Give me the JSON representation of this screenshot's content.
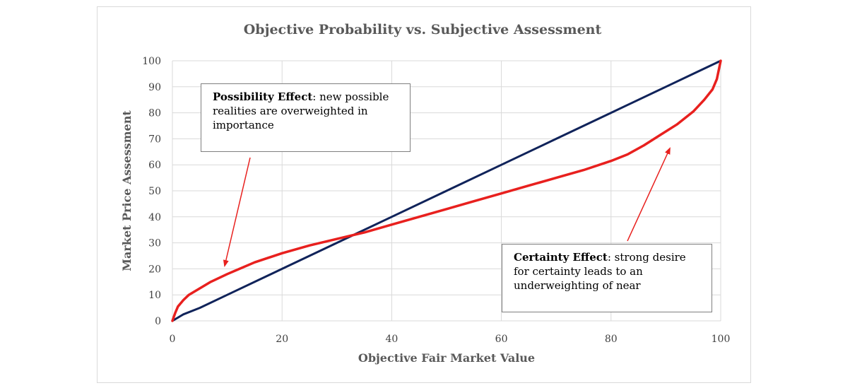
{
  "chart_data": {
    "type": "line",
    "title": "Objective Probability vs. Subjective Assessment",
    "xlabel": "Objective Fair Market Value",
    "ylabel": "Market Price Assessment",
    "xlim": [
      0,
      100
    ],
    "ylim": [
      0,
      100
    ],
    "xticks": [
      0,
      20,
      40,
      60,
      80,
      100
    ],
    "yticks": [
      0,
      10,
      20,
      30,
      40,
      50,
      60,
      70,
      80,
      90,
      100
    ],
    "grid": true,
    "series": [
      {
        "color": "#10235a",
        "x": [
          0,
          2,
          5,
          10,
          20,
          30,
          40,
          50,
          60,
          70,
          80,
          90,
          95,
          100
        ],
        "y": [
          0,
          2.5,
          5,
          10,
          20,
          30,
          40,
          50,
          60,
          70,
          80,
          90,
          95,
          100
        ]
      },
      {
        "color": "#e8201e",
        "x": [
          0,
          0.5,
          1,
          2,
          3,
          5,
          7,
          10,
          15,
          20,
          25,
          30,
          35,
          40,
          45,
          50,
          55,
          60,
          65,
          70,
          75,
          80,
          83,
          86,
          89,
          92,
          95,
          97,
          98.5,
          99.3,
          100
        ],
        "y": [
          0,
          3,
          5.5,
          8,
          10,
          12.5,
          15,
          18,
          22.5,
          26,
          29,
          31.5,
          34,
          37,
          40,
          43,
          46,
          49,
          52,
          55,
          58,
          61.5,
          64,
          67.5,
          71.5,
          75.5,
          80.5,
          85,
          89,
          93,
          100
        ]
      }
    ],
    "annotations": [
      {
        "title": "Possibility Effect",
        "text": ": new possible realities are overweighted in importance"
      },
      {
        "title": "Certainty Effect",
        "text": ": strong desire for certainty leads to an underweighting of near"
      }
    ]
  }
}
